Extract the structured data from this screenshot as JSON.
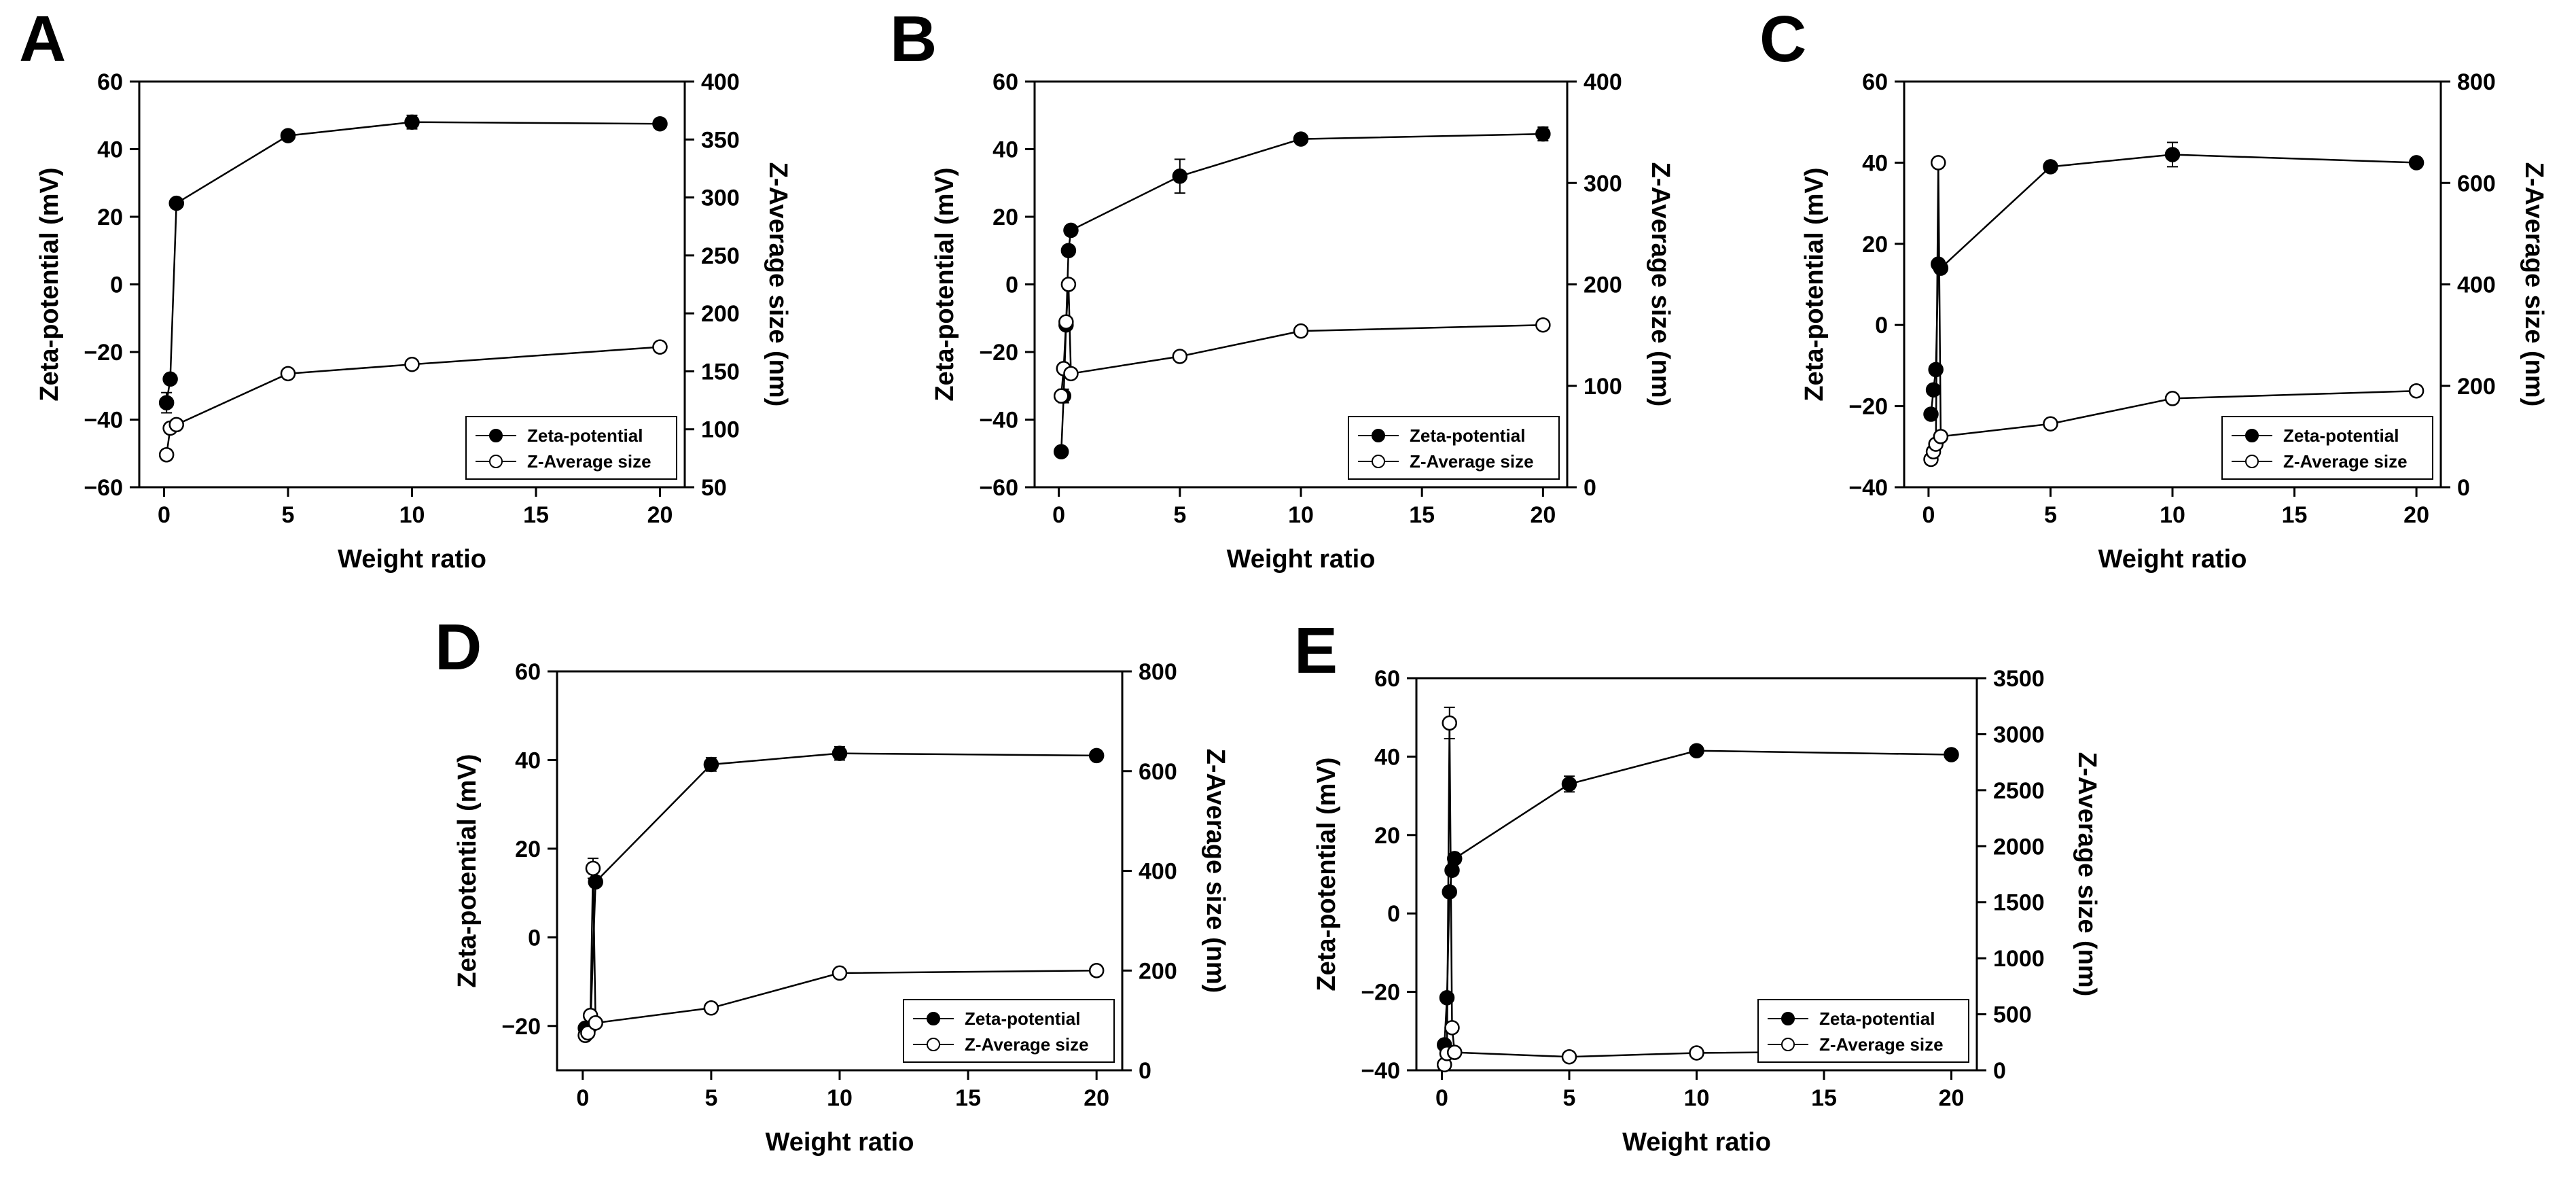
{
  "chart_data": [
    {
      "type": "line",
      "panel_label": "A",
      "xlabel": "Weight ratio",
      "ylabel": "Zeta-potential (mV)",
      "y2label": "Z-Average size (nm)",
      "xlim": [
        -1,
        21
      ],
      "ylim": [
        -60,
        60
      ],
      "y2lim": [
        50,
        400
      ],
      "xticks": [
        0,
        5,
        10,
        15,
        20
      ],
      "yticks": [
        -60,
        -40,
        -20,
        0,
        20,
        40,
        60
      ],
      "y2ticks": [
        50,
        100,
        150,
        200,
        250,
        300,
        350,
        400
      ],
      "grid": false,
      "legend_position": "bottom-right",
      "series": [
        {
          "name": "Zeta-potential",
          "axis": "left",
          "marker": "filled",
          "x": [
            0.1,
            0.25,
            0.5,
            5,
            10,
            20
          ],
          "values": [
            -35,
            -28,
            24,
            44,
            48,
            47.5
          ],
          "errors": [
            3,
            1,
            1,
            1,
            2,
            1
          ]
        },
        {
          "name": "Z-Average size",
          "axis": "right",
          "marker": "open",
          "x": [
            0.1,
            0.25,
            0.5,
            5,
            10,
            20
          ],
          "values": [
            78,
            101,
            104,
            148,
            156,
            171
          ],
          "errors": [
            0,
            0,
            0,
            0,
            0,
            0
          ]
        }
      ]
    },
    {
      "type": "line",
      "panel_label": "B",
      "xlabel": "Weight ratio",
      "ylabel": "Zeta-potential (mV)",
      "y2label": "Z-Average size (nm)",
      "xlim": [
        -1,
        21
      ],
      "ylim": [
        -60,
        60
      ],
      "y2lim": [
        0,
        400
      ],
      "xticks": [
        0,
        5,
        10,
        15,
        20
      ],
      "yticks": [
        -60,
        -40,
        -20,
        0,
        20,
        40,
        60
      ],
      "y2ticks": [
        0,
        100,
        200,
        300,
        400
      ],
      "grid": false,
      "legend_position": "bottom-right",
      "series": [
        {
          "name": "Zeta-potential",
          "axis": "left",
          "marker": "filled",
          "x": [
            0.1,
            0.2,
            0.3,
            0.4,
            0.5,
            5,
            10,
            20
          ],
          "values": [
            -49.5,
            -33,
            -12,
            10,
            16,
            32,
            43,
            44.5
          ],
          "errors": [
            0,
            2,
            1,
            1,
            1,
            5,
            1,
            2
          ]
        },
        {
          "name": "Z-Average size",
          "axis": "right",
          "marker": "open",
          "x": [
            0.1,
            0.2,
            0.3,
            0.4,
            0.5,
            5,
            10,
            20
          ],
          "values": [
            90,
            117,
            163,
            200,
            112,
            129,
            154,
            160
          ],
          "errors": [
            0,
            0,
            0,
            0,
            0,
            0,
            0,
            0
          ]
        }
      ]
    },
    {
      "type": "line",
      "panel_label": "C",
      "xlabel": "Weight ratio",
      "ylabel": "Zeta-potential (mV)",
      "y2label": "Z-Average size (nm)",
      "xlim": [
        -1,
        21
      ],
      "ylim": [
        -40,
        60
      ],
      "y2lim": [
        0,
        800
      ],
      "xticks": [
        0,
        5,
        10,
        15,
        20
      ],
      "yticks": [
        -40,
        -20,
        0,
        20,
        40,
        60
      ],
      "y2ticks": [
        0,
        200,
        400,
        600,
        800
      ],
      "grid": false,
      "legend_position": "bottom-right",
      "series": [
        {
          "name": "Zeta-potential",
          "axis": "left",
          "marker": "filled",
          "x": [
            0.1,
            0.2,
            0.3,
            0.4,
            0.5,
            5,
            10,
            20
          ],
          "values": [
            -22,
            -16,
            -11,
            15,
            14,
            39,
            42,
            40
          ],
          "errors": [
            1,
            1,
            1,
            1,
            1,
            1,
            3,
            1
          ]
        },
        {
          "name": "Z-Average size",
          "axis": "right",
          "marker": "open",
          "x": [
            0.1,
            0.2,
            0.3,
            0.4,
            0.5,
            5,
            10,
            20
          ],
          "values": [
            55,
            70,
            85,
            640,
            100,
            125,
            175,
            190
          ],
          "errors": [
            0,
            0,
            0,
            0,
            0,
            0,
            0,
            0
          ]
        }
      ]
    },
    {
      "type": "line",
      "panel_label": "D",
      "xlabel": "Weight ratio",
      "ylabel": "Zeta-potential (mV)",
      "y2label": "Z-Average size (nm)",
      "xlim": [
        -1,
        21
      ],
      "ylim": [
        -30,
        60
      ],
      "y2lim": [
        0,
        800
      ],
      "xticks": [
        0,
        5,
        10,
        15,
        20
      ],
      "yticks": [
        -20,
        0,
        20,
        40,
        60
      ],
      "y2ticks": [
        0,
        200,
        400,
        600,
        800
      ],
      "grid": false,
      "legend_position": "bottom-right",
      "series": [
        {
          "name": "Zeta-potential",
          "axis": "left",
          "marker": "filled",
          "x": [
            0.1,
            0.2,
            0.3,
            0.5,
            5,
            10,
            20
          ],
          "values": [
            -20.5,
            -21.5,
            -20,
            12.5,
            39,
            41.5,
            41
          ],
          "errors": [
            1,
            1,
            1,
            1,
            1.5,
            1.5,
            1
          ]
        },
        {
          "name": "Z-Average size",
          "axis": "right",
          "marker": "open",
          "x": [
            0.1,
            0.2,
            0.3,
            0.4,
            0.5,
            5,
            10,
            20
          ],
          "values": [
            70,
            75,
            110,
            405,
            95,
            125,
            195,
            200
          ],
          "errors": [
            0,
            0,
            0,
            20,
            0,
            0,
            0,
            0
          ]
        }
      ]
    },
    {
      "type": "line",
      "panel_label": "E",
      "xlabel": "Weight ratio",
      "ylabel": "Zeta-potential (mV)",
      "y2label": "Z-Average size (nm)",
      "xlim": [
        -1,
        21
      ],
      "ylim": [
        -40,
        60
      ],
      "y2lim": [
        0,
        3500
      ],
      "xticks": [
        0,
        5,
        10,
        15,
        20
      ],
      "yticks": [
        -40,
        -20,
        0,
        20,
        40,
        60
      ],
      "y2ticks": [
        0,
        500,
        1000,
        1500,
        2000,
        2500,
        3000,
        3500
      ],
      "grid": false,
      "legend_position": "bottom-right",
      "series": [
        {
          "name": "Zeta-potential",
          "axis": "left",
          "marker": "filled",
          "x": [
            0.1,
            0.2,
            0.3,
            0.4,
            0.5,
            5,
            10,
            20
          ],
          "values": [
            -33.5,
            -21.5,
            5.5,
            11,
            14,
            33,
            41.5,
            40.5
          ],
          "errors": [
            1,
            1,
            1,
            1,
            1,
            2,
            1,
            1
          ]
        },
        {
          "name": "Z-Average size",
          "axis": "right",
          "marker": "open",
          "x": [
            0.1,
            0.2,
            0.3,
            0.4,
            0.5,
            5,
            10,
            20
          ],
          "values": [
            50,
            150,
            3100,
            380,
            160,
            120,
            155,
            175
          ],
          "errors": [
            0,
            0,
            140,
            0,
            0,
            0,
            0,
            0
          ]
        }
      ]
    }
  ]
}
